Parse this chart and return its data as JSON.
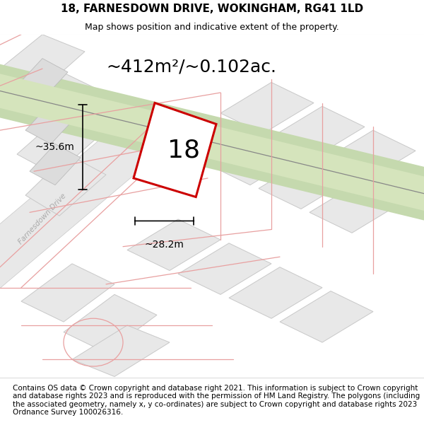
{
  "title": "18, FARNESDOWN DRIVE, WOKINGHAM, RG41 1LD",
  "subtitle": "Map shows position and indicative extent of the property.",
  "footer": "Contains OS data © Crown copyright and database right 2021. This information is subject to Crown copyright and database rights 2023 and is reproduced with the permission of HM Land Registry. The polygons (including the associated geometry, namely x, y co-ordinates) are subject to Crown copyright and database rights 2023 Ordnance Survey 100026316.",
  "area_label": "~412m²/~0.102ac.",
  "dim_vertical": "~35.6m",
  "dim_horizontal": "~28.2m",
  "house_number": "18",
  "map_bg": "#f0f0f0",
  "plot_fc": "#e8e8e8",
  "plot_ec": "#c8c8c8",
  "road_color": "#f5f5f5",
  "road_ec": "#cccccc",
  "pink": "#e8a0a0",
  "green_outer": "#c5d9ae",
  "green_inner": "#d5e4bc",
  "grey_line": "#999999",
  "red": "#cc0000",
  "title_fontsize": 11,
  "subtitle_fontsize": 9,
  "footer_fontsize": 7.5,
  "area_fontsize": 18,
  "dim_fontsize": 10,
  "house_fontsize": 26
}
